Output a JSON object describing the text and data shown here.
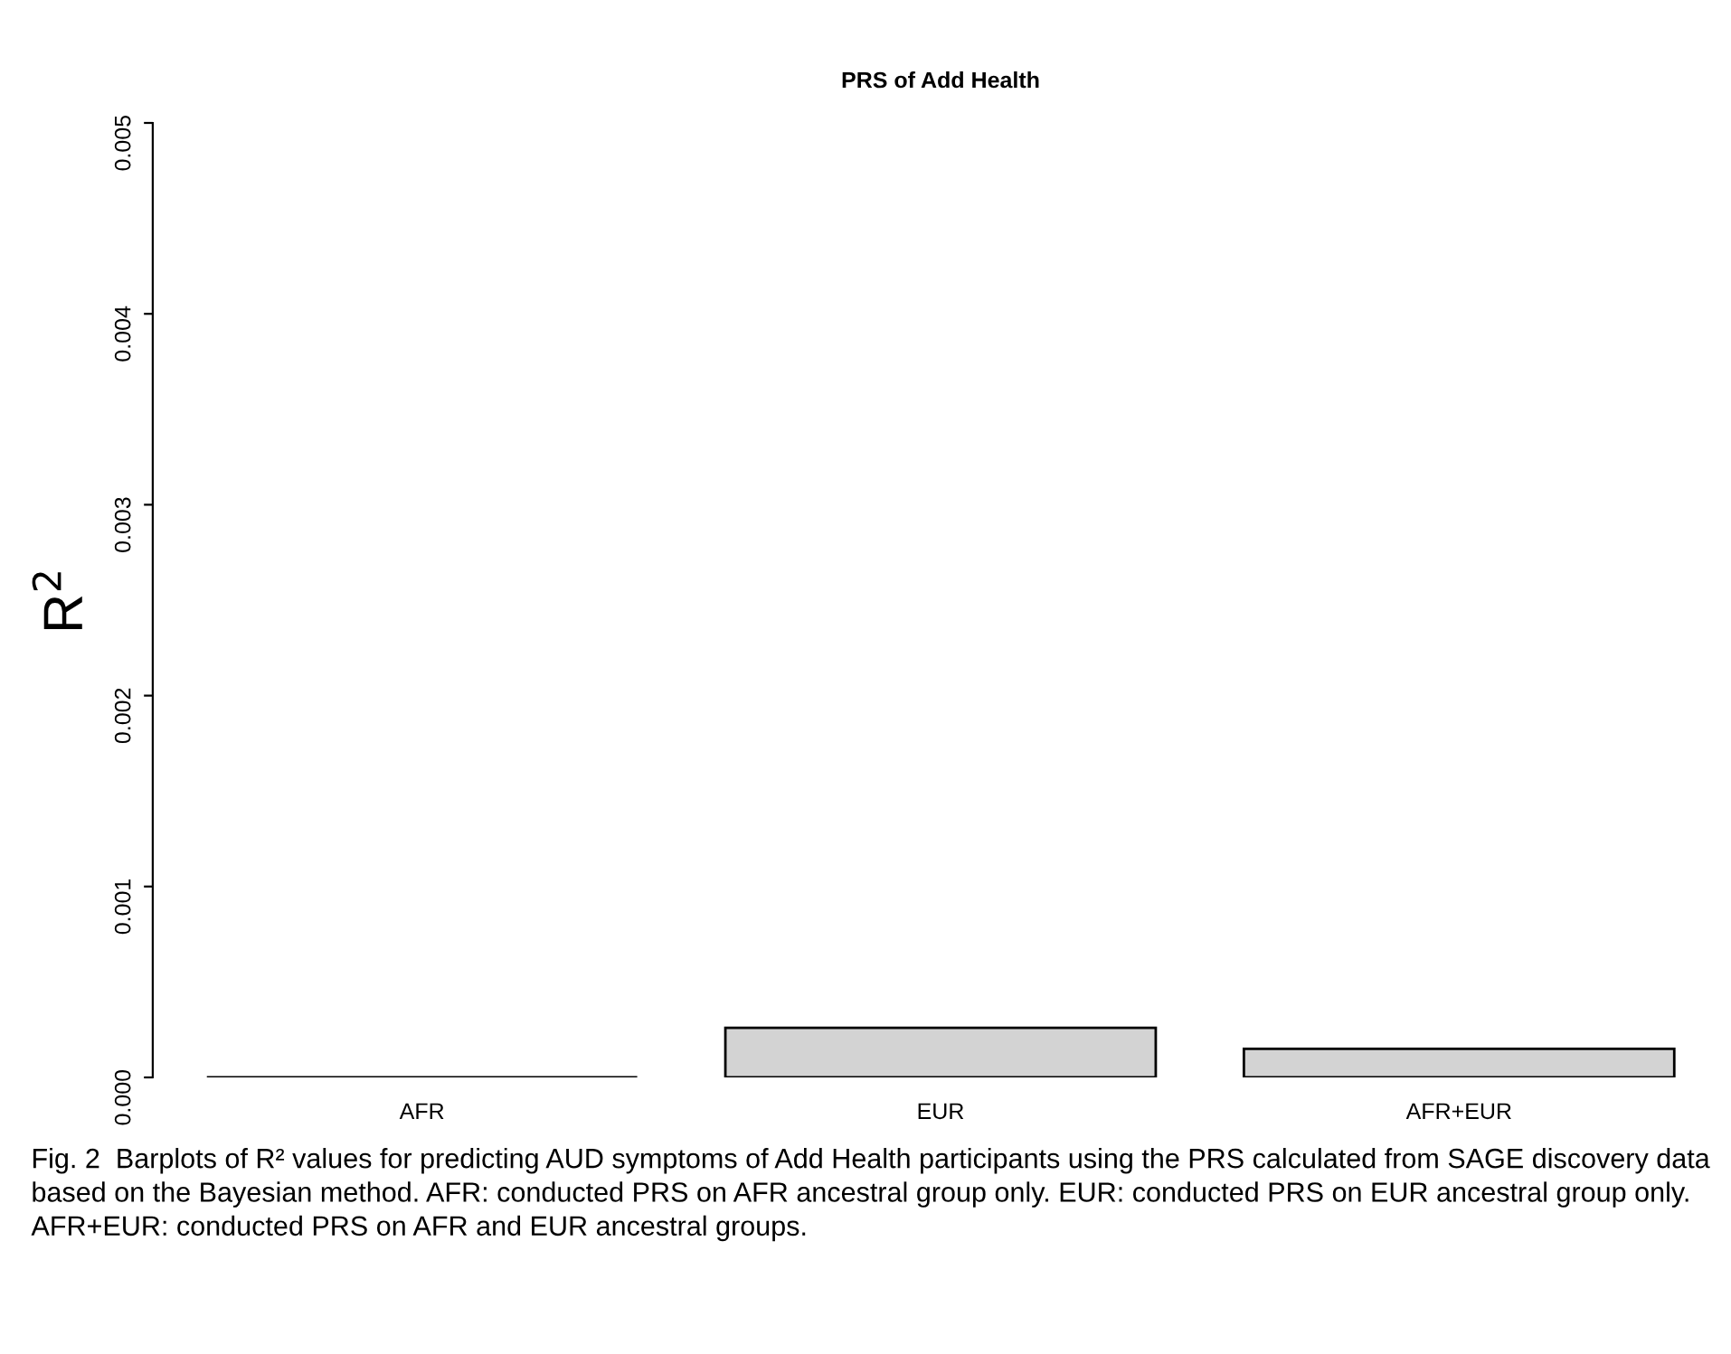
{
  "chart_data": {
    "type": "bar",
    "title": "PRS of Add Health",
    "ylabel": "R$^{2}$",
    "categories": [
      "AFR",
      "EUR",
      "AFR+EUR"
    ],
    "values": [
      0,
      0.00026,
      0.00015
    ],
    "color": "#d3d3d3",
    "ylim": [
      0,
      0.005
    ],
    "yticks": [
      {
        "value": 0,
        "label": "0.000"
      },
      {
        "value": 0.001,
        "label": "0.001"
      },
      {
        "value": 0.002,
        "label": "0.002"
      },
      {
        "value": 0.003,
        "label": "0.003"
      },
      {
        "value": 0.004,
        "label": "0.004"
      },
      {
        "value": 0.005,
        "label": "0.005"
      }
    ],
    "grid": false,
    "legend": false,
    "annotations": [
      "Fig. 2  Barplots of R² values for predicting AUD symptoms of Add Health participants using the PRS calculated from SAGE discovery data based on the Bayesian method. AFR: conducted PRS on AFR ancestral group only. EUR: conducted PRS on EUR ancestral group only. AFR+EUR: conducted PRS on AFR and EUR ancestral groups."
    ]
  }
}
